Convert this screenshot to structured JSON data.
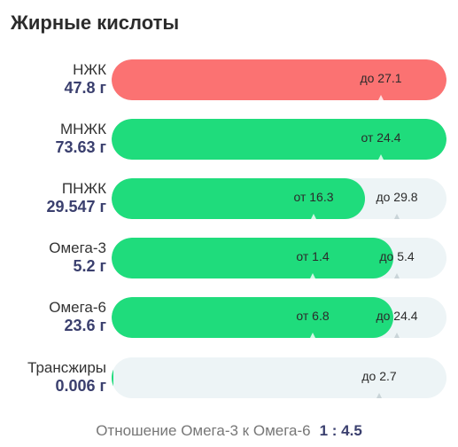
{
  "title": "Жирные кислоты",
  "rows": [
    {
      "label": "НЖК",
      "value": "47.8 г",
      "max": 27.1,
      "max_text": "до 27.1",
      "fill_color": "#fb7272"
    },
    {
      "label": "МНЖК",
      "value": "73.63 г",
      "min": 24.4,
      "min_text": "от 24.4",
      "fill_color": "#1fdc7c"
    },
    {
      "label": "ПНЖК",
      "value": "29.547 г",
      "min": 16.3,
      "max": 29.8,
      "min_text": "от 16.3",
      "max_text": "до 29.8",
      "fill_color": "#1fdc7c"
    },
    {
      "label": "Омега-3",
      "value": "5.2 г",
      "min": 1.4,
      "max": 5.4,
      "min_text": "от 1.4",
      "max_text": "до 5.4",
      "fill_color": "#1fdc7c"
    },
    {
      "label": "Омега-6",
      "value": "23.6 г",
      "min": 6.8,
      "max": 24.4,
      "min_text": "от 6.8",
      "max_text": "до 24.4",
      "fill_color": "#1fdc7c"
    },
    {
      "label": "Трансжиры",
      "value": "0.006 г",
      "max": 2.7,
      "max_text": "до 2.7",
      "fill_color": "#1fdc7c"
    }
  ],
  "ratio": {
    "label": "Отношение Омега-3 к Омега-6",
    "value": "1 : 4.5"
  }
}
